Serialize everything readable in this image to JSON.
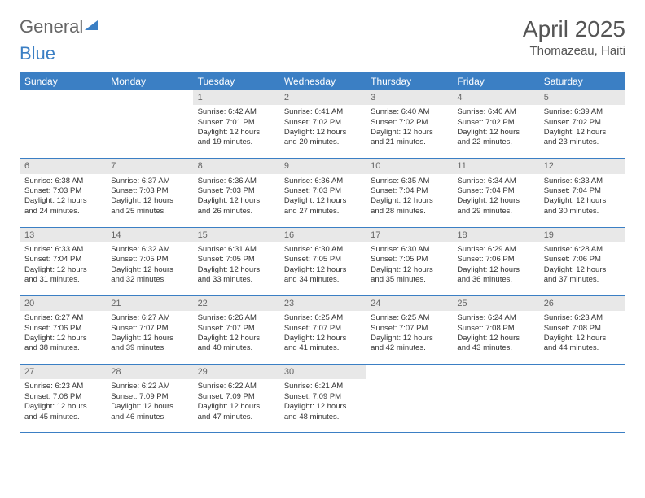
{
  "brand": {
    "part1": "General",
    "part2": "Blue"
  },
  "title": "April 2025",
  "location": "Thomazeau, Haiti",
  "colors": {
    "header_bg": "#3b7fc4",
    "header_text": "#ffffff",
    "daynum_bg": "#e8e8e8",
    "daynum_text": "#666666",
    "row_border": "#3b7fc4",
    "body_text": "#333333",
    "page_bg": "#ffffff"
  },
  "typography": {
    "title_fontsize": 28,
    "location_fontsize": 15,
    "weekday_fontsize": 12,
    "daynum_fontsize": 11,
    "cell_fontsize": 9.5
  },
  "layout": {
    "columns": 7,
    "rows": 5,
    "cell_min_height": 56
  },
  "weekdays": [
    "Sunday",
    "Monday",
    "Tuesday",
    "Wednesday",
    "Thursday",
    "Friday",
    "Saturday"
  ],
  "weeks": [
    [
      null,
      null,
      {
        "n": "1",
        "sunrise": "6:42 AM",
        "sunset": "7:01 PM",
        "daylight": "12 hours and 19 minutes."
      },
      {
        "n": "2",
        "sunrise": "6:41 AM",
        "sunset": "7:02 PM",
        "daylight": "12 hours and 20 minutes."
      },
      {
        "n": "3",
        "sunrise": "6:40 AM",
        "sunset": "7:02 PM",
        "daylight": "12 hours and 21 minutes."
      },
      {
        "n": "4",
        "sunrise": "6:40 AM",
        "sunset": "7:02 PM",
        "daylight": "12 hours and 22 minutes."
      },
      {
        "n": "5",
        "sunrise": "6:39 AM",
        "sunset": "7:02 PM",
        "daylight": "12 hours and 23 minutes."
      }
    ],
    [
      {
        "n": "6",
        "sunrise": "6:38 AM",
        "sunset": "7:03 PM",
        "daylight": "12 hours and 24 minutes."
      },
      {
        "n": "7",
        "sunrise": "6:37 AM",
        "sunset": "7:03 PM",
        "daylight": "12 hours and 25 minutes."
      },
      {
        "n": "8",
        "sunrise": "6:36 AM",
        "sunset": "7:03 PM",
        "daylight": "12 hours and 26 minutes."
      },
      {
        "n": "9",
        "sunrise": "6:36 AM",
        "sunset": "7:03 PM",
        "daylight": "12 hours and 27 minutes."
      },
      {
        "n": "10",
        "sunrise": "6:35 AM",
        "sunset": "7:04 PM",
        "daylight": "12 hours and 28 minutes."
      },
      {
        "n": "11",
        "sunrise": "6:34 AM",
        "sunset": "7:04 PM",
        "daylight": "12 hours and 29 minutes."
      },
      {
        "n": "12",
        "sunrise": "6:33 AM",
        "sunset": "7:04 PM",
        "daylight": "12 hours and 30 minutes."
      }
    ],
    [
      {
        "n": "13",
        "sunrise": "6:33 AM",
        "sunset": "7:04 PM",
        "daylight": "12 hours and 31 minutes."
      },
      {
        "n": "14",
        "sunrise": "6:32 AM",
        "sunset": "7:05 PM",
        "daylight": "12 hours and 32 minutes."
      },
      {
        "n": "15",
        "sunrise": "6:31 AM",
        "sunset": "7:05 PM",
        "daylight": "12 hours and 33 minutes."
      },
      {
        "n": "16",
        "sunrise": "6:30 AM",
        "sunset": "7:05 PM",
        "daylight": "12 hours and 34 minutes."
      },
      {
        "n": "17",
        "sunrise": "6:30 AM",
        "sunset": "7:05 PM",
        "daylight": "12 hours and 35 minutes."
      },
      {
        "n": "18",
        "sunrise": "6:29 AM",
        "sunset": "7:06 PM",
        "daylight": "12 hours and 36 minutes."
      },
      {
        "n": "19",
        "sunrise": "6:28 AM",
        "sunset": "7:06 PM",
        "daylight": "12 hours and 37 minutes."
      }
    ],
    [
      {
        "n": "20",
        "sunrise": "6:27 AM",
        "sunset": "7:06 PM",
        "daylight": "12 hours and 38 minutes."
      },
      {
        "n": "21",
        "sunrise": "6:27 AM",
        "sunset": "7:07 PM",
        "daylight": "12 hours and 39 minutes."
      },
      {
        "n": "22",
        "sunrise": "6:26 AM",
        "sunset": "7:07 PM",
        "daylight": "12 hours and 40 minutes."
      },
      {
        "n": "23",
        "sunrise": "6:25 AM",
        "sunset": "7:07 PM",
        "daylight": "12 hours and 41 minutes."
      },
      {
        "n": "24",
        "sunrise": "6:25 AM",
        "sunset": "7:07 PM",
        "daylight": "12 hours and 42 minutes."
      },
      {
        "n": "25",
        "sunrise": "6:24 AM",
        "sunset": "7:08 PM",
        "daylight": "12 hours and 43 minutes."
      },
      {
        "n": "26",
        "sunrise": "6:23 AM",
        "sunset": "7:08 PM",
        "daylight": "12 hours and 44 minutes."
      }
    ],
    [
      {
        "n": "27",
        "sunrise": "6:23 AM",
        "sunset": "7:08 PM",
        "daylight": "12 hours and 45 minutes."
      },
      {
        "n": "28",
        "sunrise": "6:22 AM",
        "sunset": "7:09 PM",
        "daylight": "12 hours and 46 minutes."
      },
      {
        "n": "29",
        "sunrise": "6:22 AM",
        "sunset": "7:09 PM",
        "daylight": "12 hours and 47 minutes."
      },
      {
        "n": "30",
        "sunrise": "6:21 AM",
        "sunset": "7:09 PM",
        "daylight": "12 hours and 48 minutes."
      },
      null,
      null,
      null
    ]
  ],
  "labels": {
    "sunrise": "Sunrise:",
    "sunset": "Sunset:",
    "daylight": "Daylight:"
  }
}
